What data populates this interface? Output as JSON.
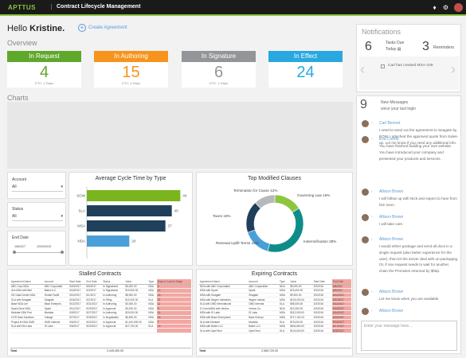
{
  "header": {
    "logo": "APTTUS",
    "title": "Contract Lifecycle Management",
    "icons": [
      "bell-icon",
      "gear-icon",
      "user-avatar"
    ]
  },
  "greeting": {
    "prefix": "Hello",
    "name": "Kristine.",
    "create_label": "Create Agreement"
  },
  "overview": {
    "label": "Overview",
    "cards": [
      {
        "title": "In Request",
        "value": "4",
        "sub": "ETC: 1 Days",
        "color": "#5fa82c"
      },
      {
        "title": "In Authoring",
        "value": "15",
        "sub": "ETC: 4 Days",
        "color": "#f7941d"
      },
      {
        "title": "In Signature",
        "value": "6",
        "sub": "ETC: 1 Days",
        "color": "#939598"
      },
      {
        "title": "In Effect",
        "value": "24",
        "sub": "",
        "color": "#29a8e0"
      }
    ]
  },
  "charts_label": "Charts",
  "filters": {
    "account_label": "Account",
    "account_value": "All",
    "status_label": "Status",
    "status_value": "All",
    "date_label": "End Date",
    "date_from": "1/8/2017",
    "date_to": "12/20/2019"
  },
  "chart_data": [
    {
      "type": "bar",
      "title": "Average Cycle Time by Type",
      "categories": [
        "SOW",
        "SLA",
        "MSA",
        "NDA"
      ],
      "values": [
        44,
        40,
        37,
        20
      ],
      "colors": [
        "#7ab51d",
        "#1f3f5b",
        "#1f3f5b",
        "#4a9fd8"
      ],
      "xlim": [
        0,
        45
      ]
    },
    {
      "type": "pie",
      "title": "Top Modified Clauses",
      "slices": [
        {
          "label": "Governing Law",
          "value": 16
        },
        {
          "label": "Indemnification",
          "value": 38
        },
        {
          "label": "Renewal Uplift Terms",
          "value": 16
        },
        {
          "label": "Taxes",
          "value": 18
        },
        {
          "label": "Termination for Cause",
          "value": 12
        }
      ],
      "colors": [
        "#8cc63f",
        "#0e8c8a",
        "#4a9fd8",
        "#1f3f5b",
        "#b6b9bc"
      ]
    }
  ],
  "stalled": {
    "title": "Stalled Contracts",
    "columns": [
      "Agreement Name",
      "Account",
      "Start Date",
      "End Date",
      "Status",
      "Value",
      "Type",
      "Days in Current Stage"
    ],
    "rows": [
      [
        "ABC Corp NDA",
        "ABC Corporatio",
        "5/20/2017",
        "6/5/2017",
        "In Signatures",
        "$5,000.00",
        "NDA",
        "5"
      ],
      [
        "Ace MSA with Bell",
        "Ballot LLC",
        "5/18/2017",
        "6/3/2017",
        "In Signatures",
        "$10,000.00",
        "NDA",
        "12"
      ],
      [
        "GE Data Center NDA",
        "Global Facilit",
        "5/10/2017",
        "6/1/2017",
        "In Authoring",
        "$8,500.00",
        "NDA",
        "18"
      ],
      [
        "SLA with Seagate",
        "Seagate",
        "5/15/2017",
        "6/2/2017",
        "In Filing",
        "$12,000.00",
        "SLA",
        "21"
      ],
      [
        "Base NDA Lee",
        "Base Enterpris",
        "5/12/2017",
        "5/31/2017",
        "In Authoring",
        "$4,000.00",
        "NDA",
        "11"
      ],
      [
        "Spark Drive NDA",
        "Spark",
        "5/11/2017",
        "5/29/2017",
        "In Approval",
        "$3,200.00",
        "NDA",
        "9"
      ],
      [
        "Modstar NDA Prot",
        "Modstar",
        "5/9/2017",
        "5/27/2017",
        "In Authoring",
        "$20,000.00",
        "NDA",
        "14"
      ],
      [
        "OCR Data Solutions",
        "Voltage",
        "5/7/2017",
        "5/25/2017",
        "In Negotiation",
        "$6,500.00",
        "NDA",
        "16"
      ],
      [
        "Project M NDA OMD",
        "OMD Internat",
        "5/6/2017",
        "5/22/2017",
        "In Approval",
        "$1,100,000.00",
        "NDA",
        "7"
      ],
      [
        "SLA with ISA Labs",
        "IS Labs",
        "5/5/2017",
        "5/20/2017",
        "In Approval",
        "$17,700.00",
        "SLA",
        "19"
      ],
      [
        "",
        "",
        "",
        "",
        "",
        "",
        "",
        ""
      ]
    ],
    "total_label": "Total",
    "total_value": "2,445,450.00"
  },
  "expiring": {
    "title": "Expiring Contracts",
    "columns": [
      "Agreement Name",
      "Account",
      "Type",
      "Value",
      "Start Date",
      "End Date"
    ],
    "rows": [
      [
        "NDA with ABC Corporation",
        "ABC Corporation",
        "NDA",
        "$5,000.00",
        "3/3/2016",
        "5/8/2017"
      ],
      [
        "MSA with Spark",
        "Spark",
        "MSA",
        "$76,000.00",
        "3/3/2016",
        "5/9/2017"
      ],
      [
        "MSA with Seagate",
        "Seagate",
        "MSA",
        "$9,900.00",
        "3/3/2016",
        "5/10/2017"
      ],
      [
        "MSA with Wayne Industries",
        "Wayne Industr",
        "MSA",
        "$124,000.00",
        "3/3/2016",
        "5/11/2017"
      ],
      [
        "SLA with OMD International",
        "OMD Internat",
        "SLA",
        "$98,000.00",
        "3/3/2016",
        "5/12/2017"
      ],
      [
        "E-CommNDA with Ventus",
        "Ventus Co.",
        "NDA",
        "$15,300.00",
        "3/3/2016",
        "5/13/2017"
      ],
      [
        "MSA with IS Labs",
        "IS Labs",
        "MSA",
        "$312,000.00",
        "3/3/2016",
        "5/14/2017"
      ],
      [
        "MSA with Base Enterprises",
        "Base Enterpr",
        "MSA",
        "$717,151.00",
        "3/3/2016",
        "5/15/2017"
      ],
      [
        "SLA with Modstar",
        "Modstar",
        "SLA",
        "$75,000.00",
        "3/3/2016",
        "5/16/2017"
      ],
      [
        "MSA with Ballot LLC",
        "Ballot LLC",
        "MSA",
        "$504,650.00",
        "3/3/2016",
        "5/17/2017"
      ],
      [
        "SLA with OpenTech",
        "OpenTech",
        "SLA",
        "$124,620.00",
        "3/3/2016",
        "5/18/2017"
      ]
    ],
    "total_label": "Total",
    "total_value": "2,565,720.00"
  },
  "notifications": {
    "title": "Notifications",
    "tasks_count": "6",
    "tasks_label": "Tasks Due",
    "tasks_sub": "Today",
    "reminders_count": "3",
    "reminders_label": "Reminders",
    "item_text": "Carl has created MSA-436"
  },
  "messages": {
    "count": "9",
    "header_line1": "New Messages",
    "header_line2": "since your last login",
    "input_placeholder": "Enter your message here...",
    "items": [
      {
        "name": "Carl Bennet",
        "text": "I need to send out the agreement to Seagate by EOW. I attached the approved quote from Sales-up. Let me know if you need any additional info."
      },
      {
        "name": "Eva Coreis",
        "text": "You have finished building your own website. You have introduced your company and presented your products and services."
      },
      {
        "name": "Allison Brown",
        "text": "I will follow up with Nick and expect to hear from him soon."
      },
      {
        "name": "Allison Brown",
        "text": "I will take care."
      },
      {
        "name": "Allison Brown",
        "text": "I would either package and send all docs in a single request (also better experience for the user), then let the server deal with un-packaging. Or, if one request needs to wait for another, chain the Promises returned by $http."
      },
      {
        "name": "Allison Brown",
        "text": "Let me know when you are available"
      },
      {
        "name": "Allison Brown",
        "text": ""
      }
    ]
  }
}
